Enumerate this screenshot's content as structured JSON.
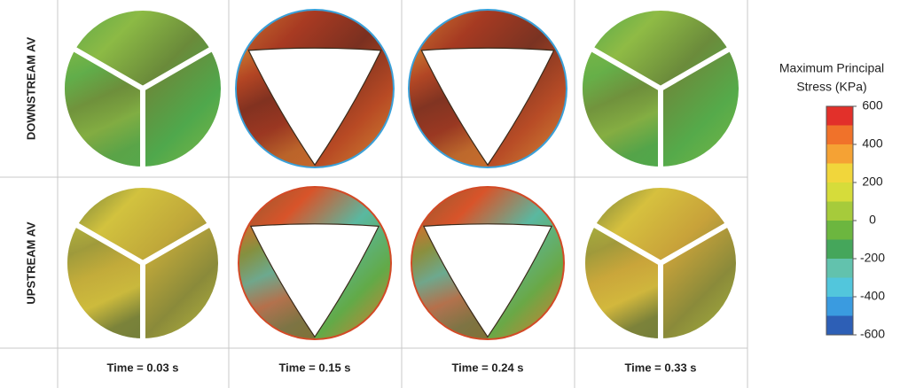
{
  "row_labels": [
    "DOWNSTREAM AV",
    "UPSTREAM AV"
  ],
  "column_labels": [
    "Time = 0.03 s",
    "Time = 0.15 s",
    "Time = 0.24 s",
    "Time = 0.33 s"
  ],
  "colorbar": {
    "title": [
      "Maximum Principal",
      "Stress (KPa)"
    ],
    "ticks": [
      600,
      400,
      200,
      0,
      -200,
      -400,
      -600
    ],
    "colors": [
      "#e2302a",
      "#f0722a",
      "#f5a234",
      "#f1d63b",
      "#d6dc3a",
      "#a6cb3b",
      "#6cb63f",
      "#45a65b",
      "#62c2ad",
      "#52c6dc",
      "#3a9be0",
      "#2d5fb6"
    ]
  }
}
